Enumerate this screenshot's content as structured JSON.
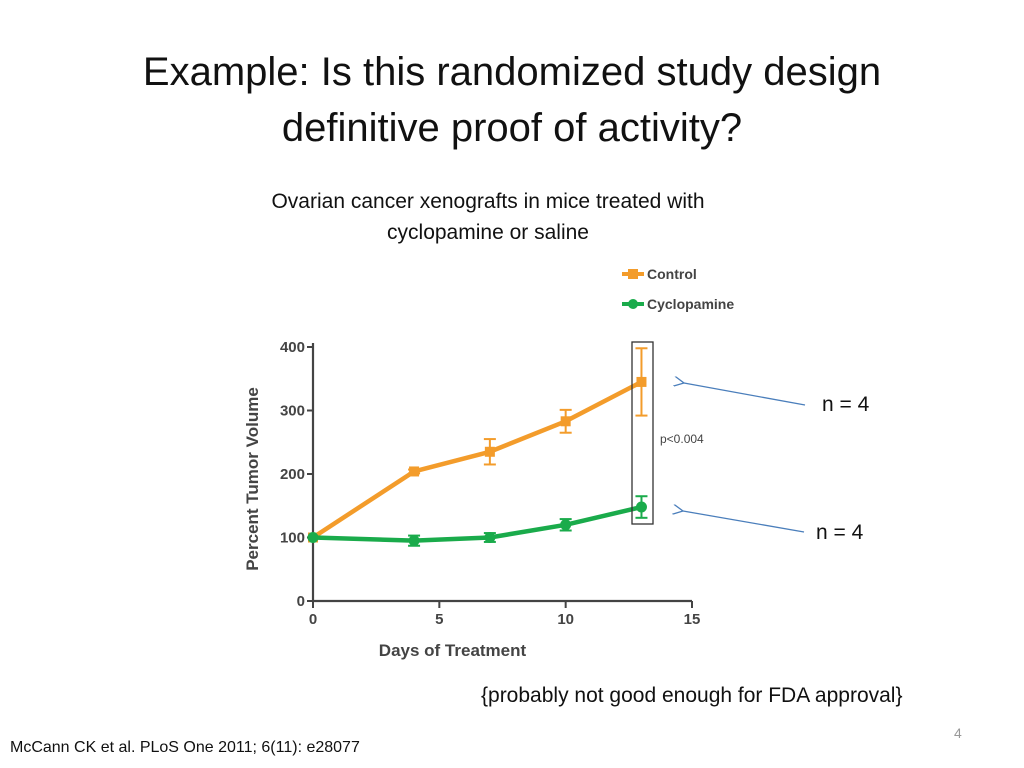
{
  "slide": {
    "title_line1": "Example: Is this randomized study design",
    "title_line2": "definitive proof of activity?",
    "subtitle_line1": "Ovarian cancer xenografts in mice treated with",
    "subtitle_line2": "cyclopamine or saline",
    "note_top": "n = 4",
    "note_bottom": "n = 4",
    "caption": "{probably not good enough for FDA approval}",
    "citation": "McCann CK et al. PLoS One 2011; 6(11): e28077",
    "page_number": "4"
  },
  "chart_data": {
    "type": "line",
    "title": "",
    "xlabel": "Days of Treatment",
    "ylabel": "Percent Tumor Volume",
    "xlim": [
      0,
      15
    ],
    "ylim": [
      0,
      400
    ],
    "x_ticks": [
      0,
      5,
      10,
      15
    ],
    "y_ticks": [
      0,
      100,
      200,
      300,
      400
    ],
    "grid": false,
    "legend_position": "top-right",
    "annotation": "p<0.004",
    "series": [
      {
        "name": "Control",
        "color": "#f39c2b",
        "marker": "square",
        "x": [
          0,
          4,
          7,
          10,
          13
        ],
        "values": [
          100,
          204,
          235,
          283,
          345
        ],
        "error": [
          0,
          3,
          20,
          18,
          53
        ]
      },
      {
        "name": "Cyclopamine",
        "color": "#1aab4b",
        "marker": "circle",
        "x": [
          0,
          4,
          7,
          10,
          13
        ],
        "values": [
          100,
          95,
          100,
          120,
          148
        ],
        "error": [
          0,
          8,
          7,
          9,
          17
        ]
      }
    ]
  }
}
